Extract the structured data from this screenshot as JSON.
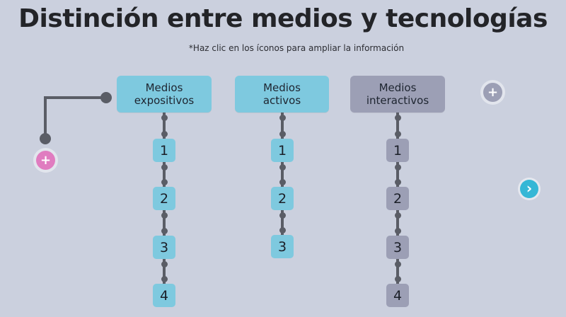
{
  "title": "Distinción entre medios y tecnologías",
  "subtitle": "*Haz clic en los íconos para ampliar la información",
  "columns": [
    {
      "label": "Medios expositivos",
      "color": "#7ec9df",
      "items": [
        "1",
        "2",
        "3",
        "4"
      ]
    },
    {
      "label": "Medios activos",
      "color": "#7ec9df",
      "items": [
        "1",
        "2",
        "3"
      ]
    },
    {
      "label": "Medios interactivos",
      "color": "#9c9fb5",
      "items": [
        "1",
        "2",
        "3",
        "4"
      ]
    }
  ],
  "buttons": {
    "plus_left_icon": "plus-icon",
    "plus_right_icon": "plus-icon",
    "next_icon": "chevron-right-icon",
    "plus_symbol": "+",
    "next_symbol": "›"
  },
  "colors": {
    "background": "#cbd0de",
    "cyan": "#7ec9df",
    "gray": "#9c9fb5",
    "pink": "#e07cc0",
    "next_blue": "#35b7d6",
    "connector": "#5a5d66"
  }
}
